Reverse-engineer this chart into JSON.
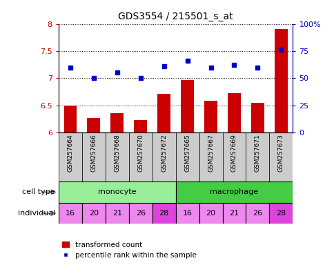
{
  "title": "GDS3554 / 215501_s_at",
  "samples": [
    "GSM257664",
    "GSM257666",
    "GSM257668",
    "GSM257670",
    "GSM257672",
    "GSM257665",
    "GSM257667",
    "GSM257669",
    "GSM257671",
    "GSM257673"
  ],
  "bar_values": [
    6.49,
    6.27,
    6.35,
    6.23,
    6.71,
    6.97,
    6.58,
    6.72,
    6.54,
    7.9
  ],
  "dot_values_pct": [
    60,
    50,
    55,
    50,
    61,
    66,
    60,
    62,
    60,
    76
  ],
  "bar_color": "#cc0000",
  "dot_color": "#0000cc",
  "ylim_left": [
    6,
    8
  ],
  "ylim_right": [
    0,
    100
  ],
  "yticks_left": [
    6,
    6.5,
    7,
    7.5,
    8
  ],
  "yticks_right": [
    0,
    25,
    50,
    75,
    100
  ],
  "ytick_labels_left": [
    "6",
    "6.5",
    "7",
    "7.5",
    "8"
  ],
  "ytick_labels_right": [
    "0",
    "25",
    "50",
    "75",
    "100%"
  ],
  "cell_type_groups": [
    {
      "label": "monocyte",
      "start": 0,
      "end": 4,
      "color": "#99ee99"
    },
    {
      "label": "macrophage",
      "start": 5,
      "end": 9,
      "color": "#44cc44"
    }
  ],
  "individuals": [
    "16",
    "20",
    "21",
    "26",
    "28",
    "16",
    "20",
    "21",
    "26",
    "28"
  ],
  "individual_bg_light": "#ee88ee",
  "individual_bg_dark": "#dd44dd",
  "individual_dark_idx": [
    4,
    9
  ],
  "xticklabel_bg": "#cccccc",
  "legend_bar_label": "transformed count",
  "legend_dot_label": "percentile rank within the sample",
  "row_label_cell_type": "cell type",
  "row_label_individual": "individual"
}
